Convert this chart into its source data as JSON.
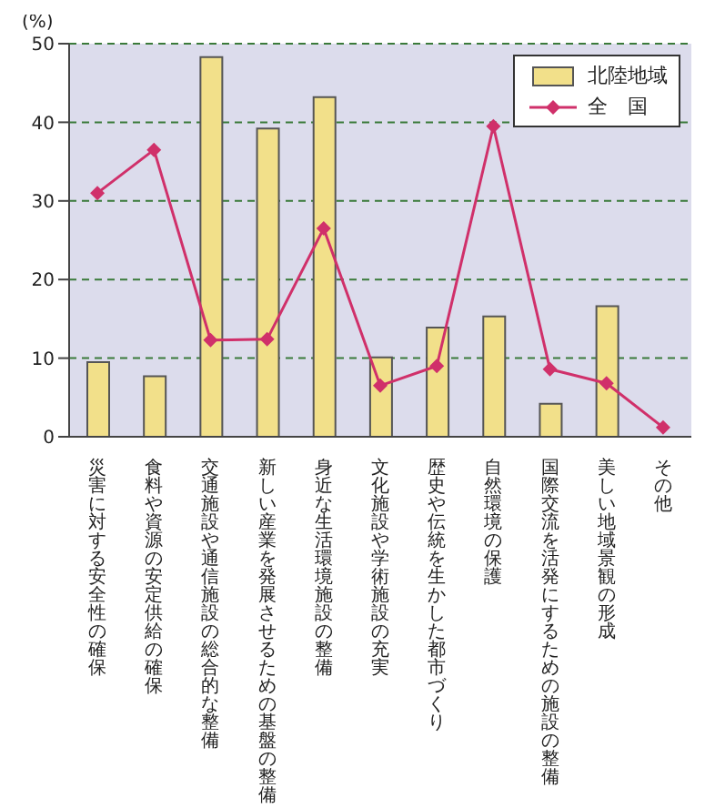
{
  "chart_data": {
    "type": "bar",
    "ylabel": "(%)",
    "categories": [
      "災害に対する安全性の確保",
      "食料や資源の安定供給の確保",
      "交通施設や通信施設の総合的な整備",
      "新しい産業を発展させるための基盤の整備",
      "身近な生活環境施設の整備",
      "文化施設や学術施設の充実",
      "歴史や伝統を生かした都市づくり",
      "自然環境の保護",
      "国際交流を活発にするための施設の整備",
      "美しい地域景観の形成",
      "その他"
    ],
    "series": [
      {
        "name": "北陸地域",
        "color": "#f2e08a",
        "values": [
          9.5,
          7.7,
          48.3,
          39.2,
          43.2,
          10.1,
          13.9,
          15.3,
          4.2,
          16.6,
          null
        ]
      },
      {
        "name": "全　国",
        "type": "line",
        "color": "#d0306a",
        "values": [
          31,
          36.5,
          12.3,
          12.4,
          26.5,
          6.5,
          9,
          39.5,
          8.6,
          6.8,
          1.2
        ]
      }
    ],
    "ylim": [
      0,
      50
    ],
    "yticks": [
      0,
      10,
      20,
      30,
      40,
      50
    ],
    "grid": "y",
    "legend": "top right",
    "marker": "diamond",
    "line_style": "solid"
  }
}
